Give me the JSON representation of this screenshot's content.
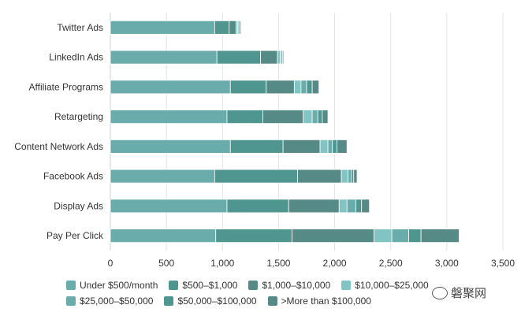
{
  "chart_data": {
    "type": "bar",
    "orientation": "horizontal",
    "stacked": true,
    "categories": [
      "Twitter Ads",
      "LinkedIn Ads",
      "Affiliate Programs",
      "Retargeting",
      "Content Network Ads",
      "Facebook Ads",
      "Display Ads",
      "Pay Per Click"
    ],
    "series": [
      {
        "name": "Under $500/month",
        "color": "#6aabab",
        "values": [
          930,
          950,
          1070,
          1040,
          1070,
          930,
          1040,
          940
        ]
      },
      {
        "name": "$500–$1,000",
        "color": "#4f9690",
        "values": [
          130,
          390,
          320,
          320,
          470,
          740,
          550,
          680
        ]
      },
      {
        "name": "$1,000–$10,000",
        "color": "#558a86",
        "values": [
          60,
          150,
          250,
          360,
          330,
          390,
          450,
          730
        ]
      },
      {
        "name": "$10,000–$25,000",
        "color": "#82c3c3",
        "values": [
          15,
          25,
          60,
          80,
          70,
          60,
          70,
          160
        ]
      },
      {
        "name": "$25,000–$50,000",
        "color": "#6aabab",
        "values": [
          10,
          10,
          50,
          50,
          40,
          30,
          80,
          150
        ]
      },
      {
        "name": "$50,000–$100,000",
        "color": "#4f9690",
        "values": [
          10,
          10,
          50,
          40,
          40,
          20,
          50,
          110
        ]
      },
      {
        "name": ">More than $100,000",
        "color": "#558a86",
        "values": [
          10,
          10,
          60,
          50,
          90,
          30,
          70,
          340
        ]
      }
    ],
    "x_ticks": [
      "0",
      "500",
      "1,000",
      "1,500",
      "2,000",
      "2,500",
      "3,000",
      "3,500"
    ],
    "xlim": [
      0,
      3500
    ],
    "grid": true,
    "legend_position": "bottom",
    "title": "",
    "xlabel": "",
    "ylabel": ""
  },
  "watermark": {
    "text": "磐聚网",
    "icon": "wechat-icon"
  }
}
